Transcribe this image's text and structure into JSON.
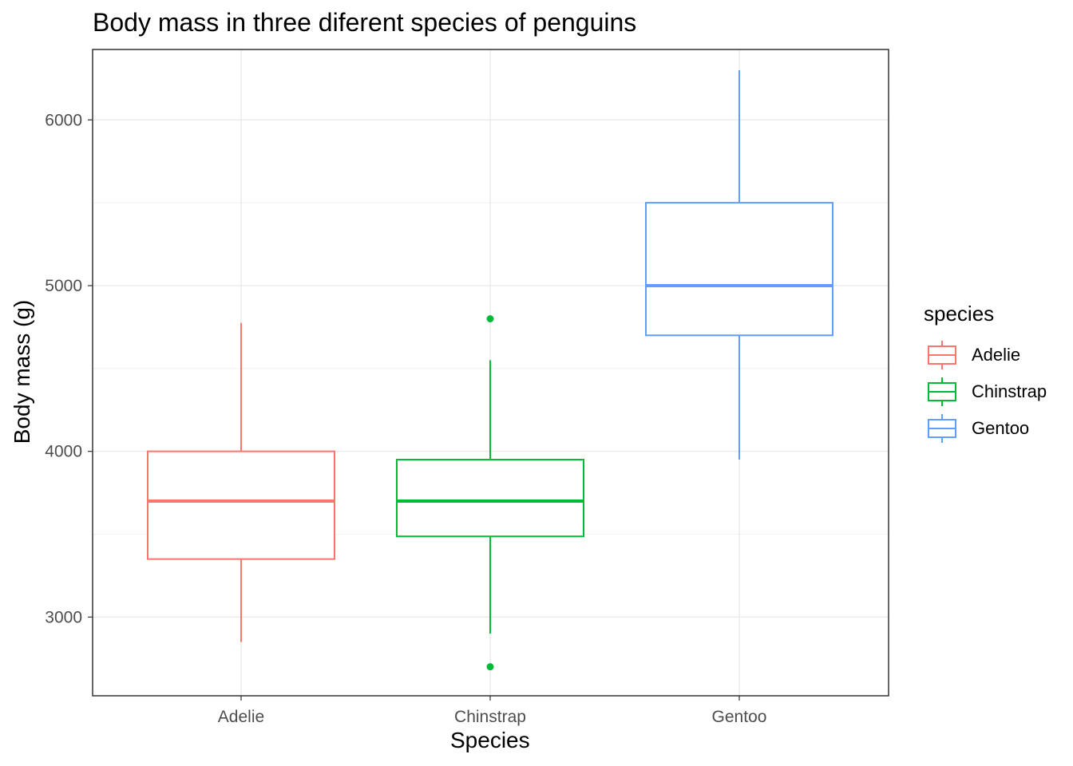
{
  "chart_data": {
    "type": "box",
    "title": "Body mass in three diferent species of penguins",
    "xlabel": "Species",
    "ylabel": "Body mass (g)",
    "ylim": [
      2525,
      6425
    ],
    "yticks": [
      3000,
      4000,
      5000,
      6000
    ],
    "grid": true,
    "legend": {
      "title": "species",
      "placement": "right"
    },
    "categories": [
      "Adelie",
      "Chinstrap",
      "Gentoo"
    ],
    "series": [
      {
        "name": "Adelie",
        "color": "#F8766D",
        "whisker_low": 2850,
        "q1": 3350,
        "median": 3700,
        "q3": 4000,
        "whisker_high": 4775,
        "outliers": []
      },
      {
        "name": "Chinstrap",
        "color": "#00BA38",
        "whisker_low": 2900,
        "q1": 3487,
        "median": 3700,
        "q3": 3950,
        "whisker_high": 4550,
        "outliers": [
          2700,
          4800
        ]
      },
      {
        "name": "Gentoo",
        "color": "#619CFF",
        "whisker_low": 3950,
        "q1": 4700,
        "median": 5000,
        "q3": 5500,
        "whisker_high": 6300,
        "outliers": []
      }
    ]
  }
}
